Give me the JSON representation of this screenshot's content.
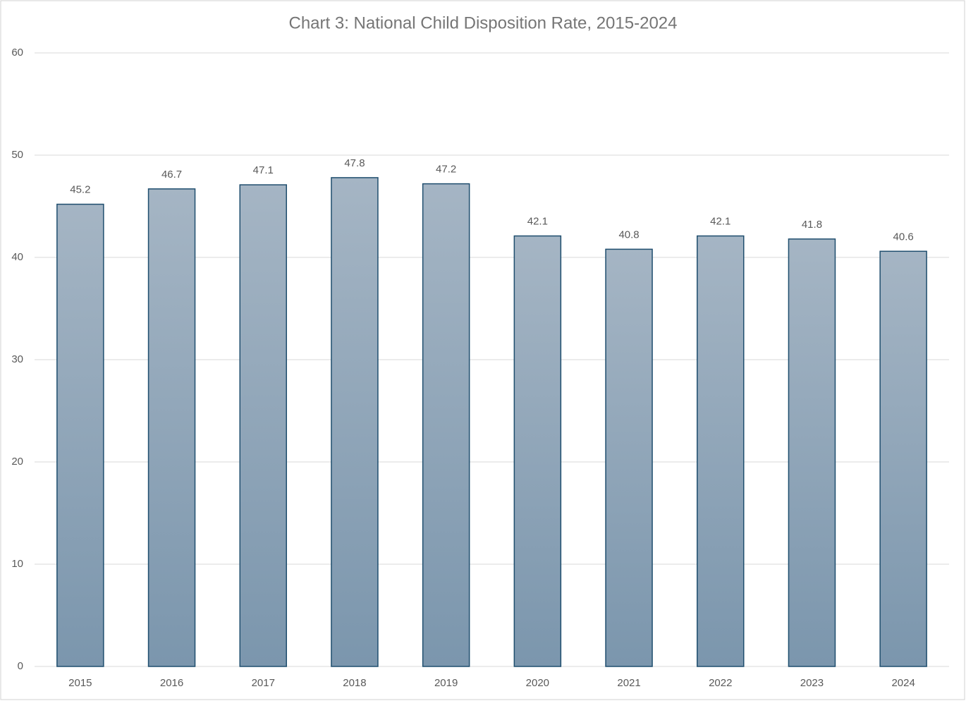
{
  "chart_data": {
    "type": "bar",
    "title": "Chart 3: National Child Disposition Rate, 2015-2024",
    "categories": [
      "2015",
      "2016",
      "2017",
      "2018",
      "2019",
      "2020",
      "2021",
      "2022",
      "2023",
      "2024"
    ],
    "values": [
      45.2,
      46.7,
      47.1,
      47.8,
      47.2,
      42.1,
      40.8,
      42.1,
      41.8,
      40.6
    ],
    "color": "#1f4e6e",
    "fill_gradient": [
      "#a5b5c4",
      "#7b96ad"
    ],
    "ylim": [
      0,
      60
    ],
    "yticks": [
      0,
      10,
      20,
      30,
      40,
      50,
      60
    ],
    "grid": true,
    "data_labels": true
  }
}
